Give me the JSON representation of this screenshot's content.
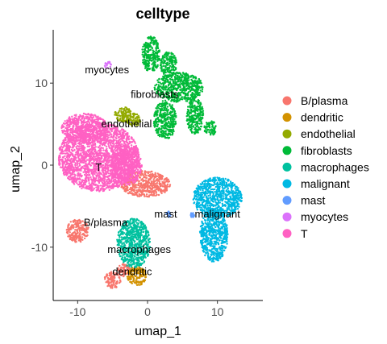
{
  "chart_data": {
    "type": "scatter",
    "title": "celltype",
    "xlabel": "umap_1",
    "ylabel": "umap_2",
    "xlim": [
      -13.5,
      16.5
    ],
    "ylim": [
      -16.5,
      16.5
    ],
    "xticks": [
      -10,
      0,
      10
    ],
    "yticks": [
      -10,
      0,
      10
    ],
    "grid": false,
    "legend_position": "right",
    "legend_title": "",
    "series": [
      {
        "name": "B/plasma",
        "color": "#F8766D",
        "label_at": [
          -6,
          -7
        ],
        "clusters": [
          [
            -10,
            -8,
            1.6,
            1.4
          ],
          [
            -0.3,
            -2.3,
            3.6,
            1.6
          ],
          [
            -5,
            -14,
            1.2,
            1
          ],
          [
            -3.3,
            -12.8,
            1,
            0.8
          ]
        ]
      },
      {
        "name": "dendritic",
        "color": "#D39200",
        "label_at": [
          -2.2,
          -13
        ],
        "clusters": [
          [
            -1.5,
            -13.5,
            1.4,
            1.2
          ]
        ]
      },
      {
        "name": "endothelial",
        "color": "#93AA00",
        "label_at": [
          -3,
          5
        ],
        "clusters": [
          [
            -3.5,
            6.2,
            1.2,
            0.9
          ],
          [
            -2,
            5.5,
            1,
            0.8
          ]
        ]
      },
      {
        "name": "fibroblasts",
        "color": "#00BA38",
        "label_at": [
          1,
          8.6
        ],
        "clusters": [
          [
            0.5,
            13.5,
            1.3,
            2.2
          ],
          [
            3,
            12.3,
            1.2,
            1.5
          ],
          [
            4.5,
            9.5,
            3.5,
            1.8
          ],
          [
            2.5,
            5.5,
            1.6,
            2.4
          ],
          [
            6.8,
            6,
            1.2,
            2.2
          ],
          [
            9,
            4.5,
            0.9,
            0.9
          ]
        ]
      },
      {
        "name": "macrophages",
        "color": "#00C19F",
        "label_at": [
          -1.2,
          -10.3
        ],
        "clusters": [
          [
            -2,
            -9.5,
            2.4,
            3
          ]
        ]
      },
      {
        "name": "malignant",
        "color": "#00B9E3",
        "label_at": [
          10,
          -6
        ],
        "clusters": [
          [
            10,
            -4,
            3.5,
            2.5
          ],
          [
            9.5,
            -8.5,
            2,
            3.3
          ]
        ]
      },
      {
        "name": "mast",
        "color": "#619CFF",
        "label_at": [
          2.6,
          -6
        ],
        "clusters": [
          [
            3,
            -6,
            0.35,
            0.35
          ],
          [
            6.4,
            -6.1,
            0.3,
            0.3
          ]
        ]
      },
      {
        "name": "myocytes",
        "color": "#DB72FB",
        "label_at": [
          -5.8,
          11.6
        ],
        "clusters": [
          [
            -5.7,
            12.2,
            0.5,
            0.45
          ]
        ]
      },
      {
        "name": "T",
        "color": "#FF61C3",
        "label_at": [
          -7,
          -0.3
        ],
        "clusters": [
          [
            -7,
            1,
            5.8,
            4.2
          ],
          [
            -9,
            4.5,
            3.3,
            1.8
          ],
          [
            -3,
            0,
            2.2,
            2.5
          ]
        ]
      }
    ]
  }
}
